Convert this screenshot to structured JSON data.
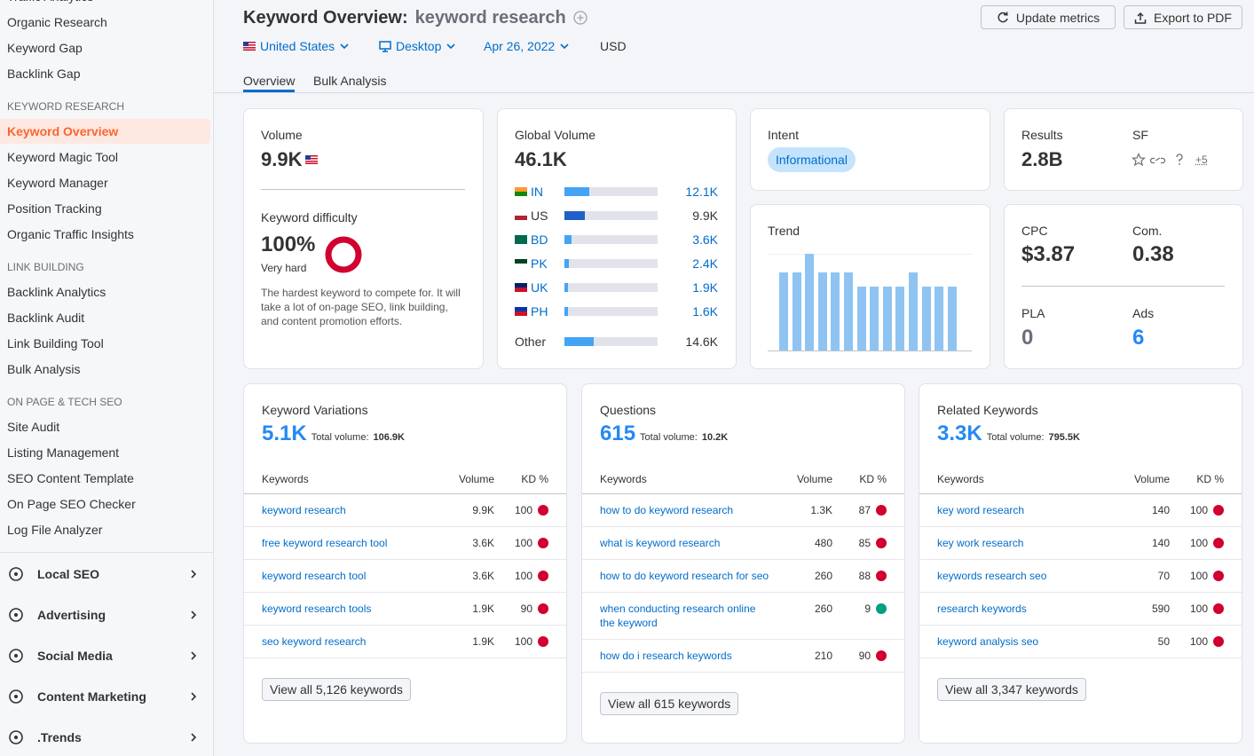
{
  "sidebar": {
    "top_items": [
      "Traffic Analytics",
      "Organic Research",
      "Keyword Gap",
      "Backlink Gap"
    ],
    "sections": [
      {
        "title": "KEYWORD RESEARCH",
        "items": [
          "Keyword Overview",
          "Keyword Magic Tool",
          "Keyword Manager",
          "Position Tracking",
          "Organic Traffic Insights"
        ]
      },
      {
        "title": "LINK BUILDING",
        "items": [
          "Backlink Analytics",
          "Backlink Audit",
          "Link Building Tool",
          "Bulk Analysis"
        ]
      },
      {
        "title": "ON PAGE & TECH SEO",
        "items": [
          "Site Audit",
          "Listing Management",
          "SEO Content Template",
          "On Page SEO Checker",
          "Log File Analyzer"
        ]
      }
    ],
    "active": {
      "section": 0,
      "item": 0
    },
    "groups": [
      "Local SEO",
      "Advertising",
      "Social Media",
      "Content Marketing",
      ".Trends"
    ]
  },
  "header": {
    "title": "Keyword Overview:",
    "keyword": "keyword research",
    "filters": [
      "United States",
      "Desktop",
      "Apr 26, 2022",
      "USD"
    ],
    "buttons": [
      "Update metrics",
      "Export to PDF"
    ],
    "tabs": [
      "Overview",
      "Bulk Analysis"
    ],
    "active_tab": 0
  },
  "cards": {
    "volume": {
      "label": "Volume",
      "value": "9.9K"
    },
    "keyword_difficulty": {
      "label": "Keyword difficulty",
      "value": 100,
      "value_label": "100%",
      "level": "Very hard",
      "description": "The hardest keyword to compete for. It will take a lot of on-page SEO, link building, and content promotion efforts."
    },
    "global_volume": {
      "label": "Global Volume",
      "value": 46100,
      "value_label": "46.1K",
      "countries": [
        {
          "code": "IN",
          "value": 12100,
          "label": "12.1K"
        },
        {
          "code": "US",
          "value": 9900,
          "label": "9.9K",
          "selected": true
        },
        {
          "code": "BD",
          "value": 3600,
          "label": "3.6K"
        },
        {
          "code": "PK",
          "value": 2400,
          "label": "2.4K"
        },
        {
          "code": "UK",
          "value": 1900,
          "label": "1.9K"
        },
        {
          "code": "PH",
          "value": 1600,
          "label": "1.6K"
        }
      ],
      "other": {
        "label": "Other",
        "value": 14600,
        "value_label": "14.6K"
      }
    },
    "intent": {
      "label": "Intent",
      "value": "Informational"
    },
    "trend": {
      "label": "Trend",
      "values": [
        0.81,
        0.81,
        1,
        0.81,
        0.81,
        0.81,
        0.66,
        0.66,
        0.66,
        0.66,
        0.81,
        0.66,
        0.66,
        0.66
      ],
      "ylim": [
        0,
        1
      ]
    },
    "results": {
      "label": "Results",
      "value": "2.8B",
      "sf_label": "SF",
      "sf_more": "+5"
    },
    "cpc": {
      "cpc_label": "CPC",
      "cpc": "$3.87",
      "com_label": "Com.",
      "com": 0.38,
      "pla_label": "PLA",
      "pla": 0,
      "ads_label": "Ads",
      "ads": 6
    }
  },
  "panels": [
    {
      "title": "Keyword Variations",
      "count": "5.1K",
      "total_label": "Total volume:",
      "total": "106.9K",
      "columns": [
        "Keywords",
        "Volume",
        "KD %"
      ],
      "rows": [
        {
          "keyword": "keyword research",
          "volume": "9.9K",
          "kd": 100
        },
        {
          "keyword": "free keyword research tool",
          "volume": "3.6K",
          "kd": 100
        },
        {
          "keyword": "keyword research tool",
          "volume": "3.6K",
          "kd": 100
        },
        {
          "keyword": "keyword research tools",
          "volume": "1.9K",
          "kd": 90
        },
        {
          "keyword": "seo keyword research",
          "volume": "1.9K",
          "kd": 100
        }
      ],
      "button": "View all 5,126 keywords"
    },
    {
      "title": "Questions",
      "count": "615",
      "total_label": "Total volume:",
      "total": "10.2K",
      "columns": [
        "Keywords",
        "Volume",
        "KD %"
      ],
      "rows": [
        {
          "keyword": "how to do keyword research",
          "volume": "1.3K",
          "kd": 87
        },
        {
          "keyword": "what is keyword research",
          "volume": 480,
          "kd": 85
        },
        {
          "keyword": "how to do keyword research for seo",
          "volume": 260,
          "kd": 88
        },
        {
          "keyword": "when conducting research online the keyword",
          "volume": 260,
          "kd": 9
        },
        {
          "keyword": "how do i research keywords",
          "volume": 210,
          "kd": 90
        }
      ],
      "button": "View all 615 keywords"
    },
    {
      "title": "Related Keywords",
      "count": "3.3K",
      "total_label": "Total volume:",
      "total": "795.5K",
      "columns": [
        "Keywords",
        "Volume",
        "KD %"
      ],
      "rows": [
        {
          "keyword": "key word research",
          "volume": 140,
          "kd": 100
        },
        {
          "keyword": "key work research",
          "volume": 140,
          "kd": 100
        },
        {
          "keyword": "keywords research seo",
          "volume": 70,
          "kd": 100
        },
        {
          "keyword": "research keywords",
          "volume": 590,
          "kd": 100
        },
        {
          "keyword": "keyword analysis seo",
          "volume": 50,
          "kd": 100
        }
      ],
      "button": "View all 3,347 keywords"
    }
  ]
}
